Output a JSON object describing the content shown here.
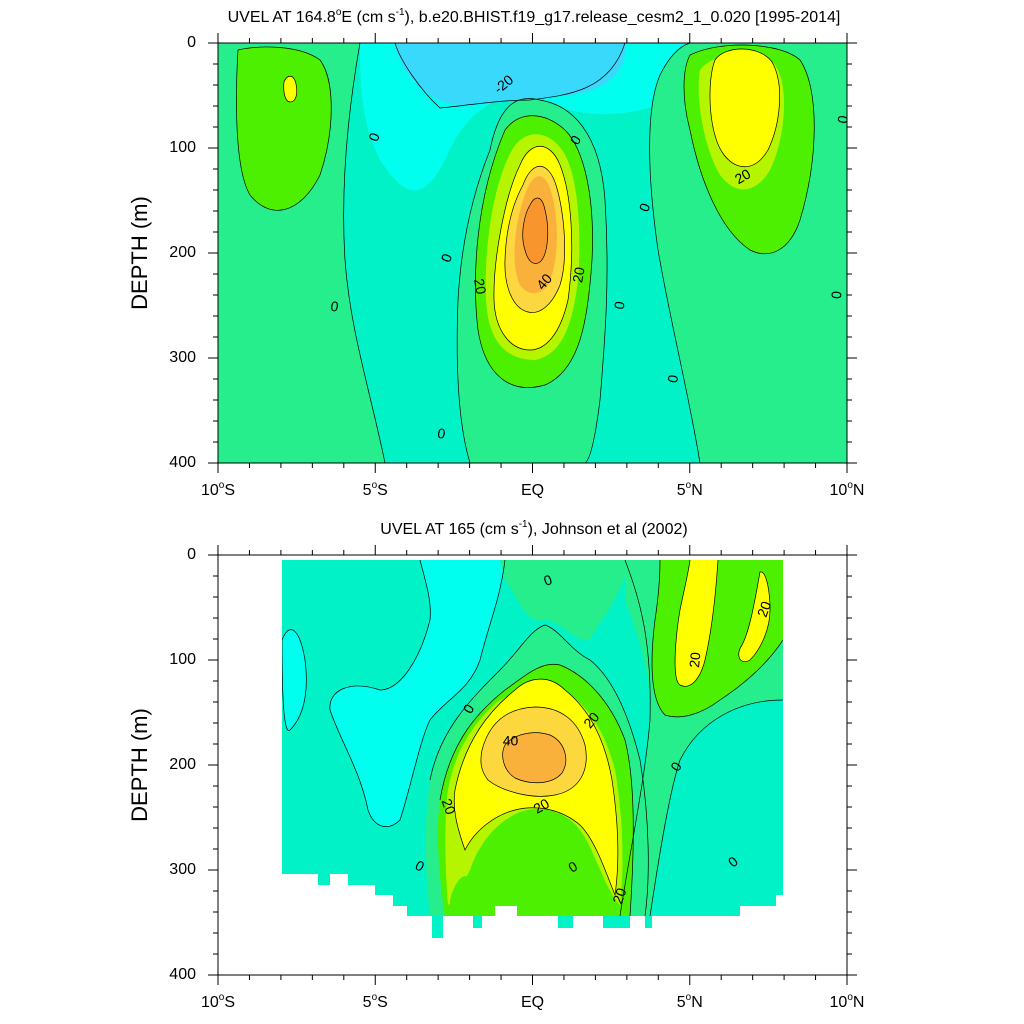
{
  "colors": {
    "neg30": "#38d9fb",
    "neg10": "#00ffee",
    "neg0": "#00f2c6",
    "pos10": "#27ee8c",
    "pos0": "#4cf000",
    "pos20": "#b6f500",
    "pos30": "#ffff00",
    "pos40": "#fcd83e",
    "pos50": "#f9b13c",
    "pos60": "#f8962d"
  },
  "chart_data": [
    {
      "type": "contour",
      "title": "UVEL AT 164.8°E (cm s-1), b.e20.BHIST.f19_g17.release_cesm2_1_0.020 [1995-2014]",
      "title_parts": {
        "before": "UVEL AT 164.8",
        "deg": "o",
        "mid": "E (cm s",
        "sup": "-1",
        "after": "), b.e20.BHIST.f19_g17.release_cesm2_1_0.020 [1995-2014]"
      },
      "ylabel": "DEPTH (m)",
      "xlabel": "",
      "xlim": [
        -10,
        10
      ],
      "ylim": [
        0,
        400
      ],
      "x_ticks": [
        {
          "value": -10,
          "main": "10",
          "deg": "o",
          "suffix": "S"
        },
        {
          "value": -5,
          "main": "5",
          "deg": "o",
          "suffix": "S"
        },
        {
          "value": 0,
          "main": "EQ",
          "deg": "",
          "suffix": ""
        },
        {
          "value": 5,
          "main": "5",
          "deg": "o",
          "suffix": "N"
        },
        {
          "value": 10,
          "main": "10",
          "deg": "o",
          "suffix": "N"
        }
      ],
      "y_ticks": [
        "0",
        "100",
        "200",
        "300",
        "400"
      ],
      "y_tick_values": [
        0,
        100,
        200,
        300,
        400
      ],
      "contour_labels": [
        {
          "text": "-20",
          "lat": -0.9,
          "depth": 40,
          "angle": -40
        },
        {
          "text": "0",
          "lat": -5.0,
          "depth": 90,
          "angle": -70
        },
        {
          "text": "0",
          "lat": -6.3,
          "depth": 252,
          "angle": 10
        },
        {
          "text": "0",
          "lat": -2.7,
          "depth": 205,
          "angle": -70
        },
        {
          "text": "0",
          "lat": -2.9,
          "depth": 373,
          "angle": 10
        },
        {
          "text": "0",
          "lat": 1.4,
          "depth": 93,
          "angle": -60
        },
        {
          "text": "0",
          "lat": 3.6,
          "depth": 157,
          "angle": -70
        },
        {
          "text": "0",
          "lat": 2.8,
          "depth": 250,
          "angle": -80
        },
        {
          "text": "0",
          "lat": 4.5,
          "depth": 320,
          "angle": -80
        },
        {
          "text": "0",
          "lat": 9.9,
          "depth": 73,
          "angle": -80
        },
        {
          "text": "0",
          "lat": 9.7,
          "depth": 240,
          "angle": -85
        },
        {
          "text": "20",
          "lat": -1.7,
          "depth": 232,
          "angle": 80
        },
        {
          "text": "20",
          "lat": 1.5,
          "depth": 221,
          "angle": -80
        },
        {
          "text": "40",
          "lat": 0.4,
          "depth": 228,
          "angle": -50
        },
        {
          "text": "20",
          "lat": 6.7,
          "depth": 128,
          "angle": -30
        }
      ]
    },
    {
      "type": "contour",
      "title": "UVEL AT 165 (cm s-1), Johnson et al (2002)",
      "title_parts": {
        "before": "UVEL AT 165 (cm s",
        "sup": "-1",
        "after": "), Johnson et al (2002)"
      },
      "ylabel": "DEPTH (m)",
      "xlabel": "",
      "xlim": [
        -10,
        10
      ],
      "ylim": [
        0,
        400
      ],
      "x_ticks": [
        {
          "value": -10,
          "main": "10",
          "deg": "o",
          "suffix": "S"
        },
        {
          "value": -5,
          "main": "5",
          "deg": "o",
          "suffix": "S"
        },
        {
          "value": 0,
          "main": "EQ",
          "deg": "",
          "suffix": ""
        },
        {
          "value": 5,
          "main": "5",
          "deg": "o",
          "suffix": "N"
        },
        {
          "value": 10,
          "main": "10",
          "deg": "o",
          "suffix": "N"
        }
      ],
      "y_ticks": [
        "0",
        "100",
        "200",
        "300",
        "400"
      ],
      "y_tick_values": [
        0,
        100,
        200,
        300,
        400
      ],
      "data_extent": {
        "lat": [
          -8,
          8
        ],
        "depth": [
          0,
          365
        ]
      },
      "contour_labels": [
        {
          "text": "0",
          "lat": 0.5,
          "depth": 25,
          "angle": -20
        },
        {
          "text": "0",
          "lat": -2.0,
          "depth": 147,
          "angle": -60
        },
        {
          "text": "40",
          "lat": -0.7,
          "depth": 178,
          "angle": 0
        },
        {
          "text": "20",
          "lat": 1.9,
          "depth": 158,
          "angle": -50
        },
        {
          "text": "20",
          "lat": -2.7,
          "depth": 240,
          "angle": 70
        },
        {
          "text": "20",
          "lat": 0.3,
          "depth": 240,
          "angle": -30
        },
        {
          "text": "0",
          "lat": 4.6,
          "depth": 202,
          "angle": -60
        },
        {
          "text": "0",
          "lat": -3.6,
          "depth": 297,
          "angle": 30
        },
        {
          "text": "0",
          "lat": 1.3,
          "depth": 298,
          "angle": -30
        },
        {
          "text": "20",
          "lat": 2.8,
          "depth": 325,
          "angle": -70
        },
        {
          "text": "0",
          "lat": 6.4,
          "depth": 293,
          "angle": -40
        },
        {
          "text": "20",
          "lat": 5.2,
          "depth": 100,
          "angle": -85
        },
        {
          "text": "20",
          "lat": 7.4,
          "depth": 52,
          "angle": -70
        }
      ]
    }
  ]
}
